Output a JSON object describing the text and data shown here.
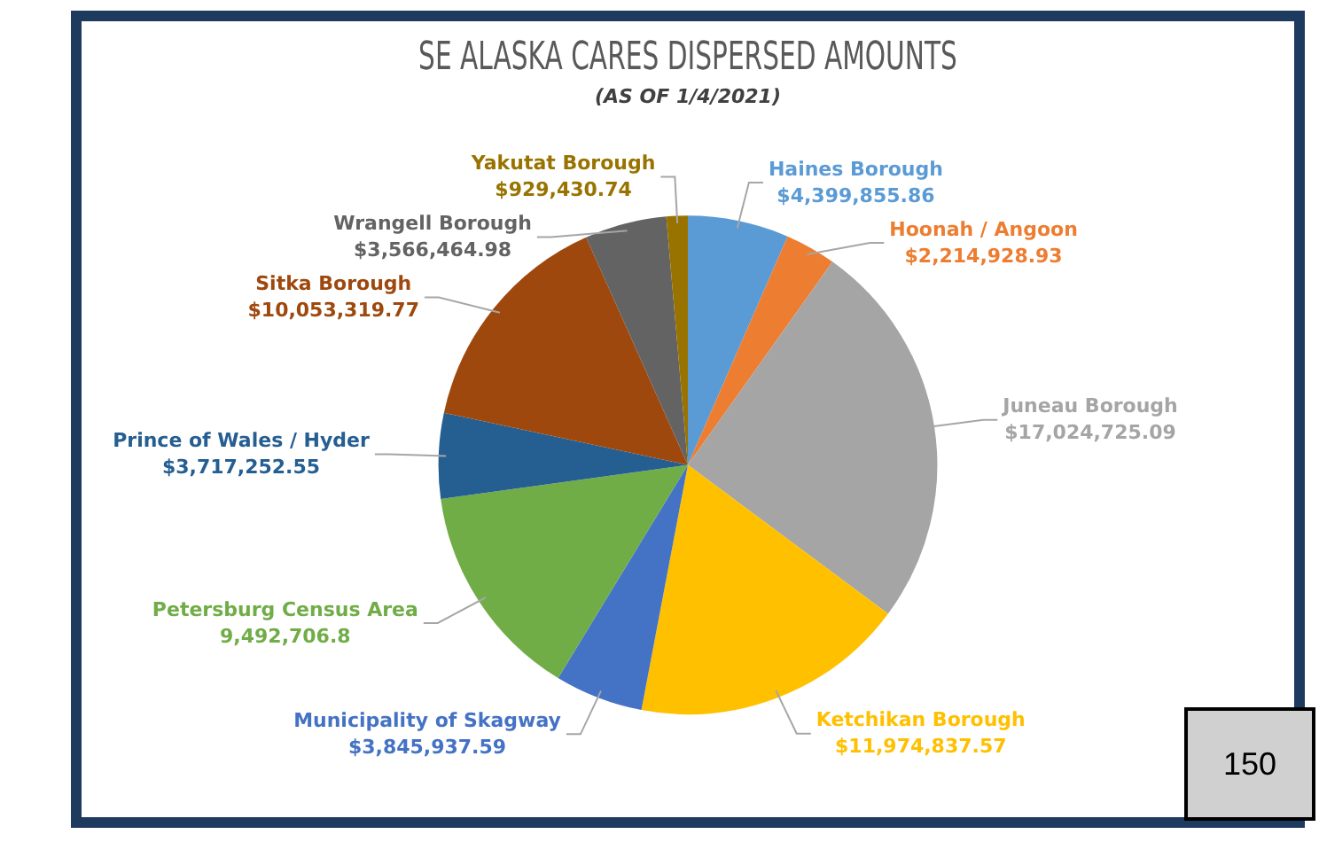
{
  "chart_data": {
    "type": "pie",
    "title": "SE ALASKA CARES DISPERSED AMOUNTS",
    "subtitle": "(AS OF 1/4/2021)",
    "categories": [
      "Haines Borough",
      "Hoonah / Angoon",
      "Juneau Borough",
      "Ketchikan Borough",
      "Municipality of Skagway",
      "Petersburg Census Area",
      "Prince of Wales / Hyder",
      "Sitka Borough",
      "Wrangell Borough",
      "Yakutat Borough"
    ],
    "values": [
      4399855.86,
      2214928.93,
      17024725.09,
      11974837.57,
      3845937.59,
      9492706.8,
      3717252.55,
      10053319.77,
      3566464.98,
      929430.74
    ],
    "value_labels": [
      "$4,399,855.86",
      "$2,214,928.93",
      "$17,024,725.09",
      "$11,974,837.57",
      "$3,845,937.59",
      "9,492,706.8",
      "$3,717,252.55",
      "$10,053,319.77",
      "$3,566,464.98",
      "$929,430.74"
    ],
    "colors": [
      "#5b9bd5",
      "#ed7d31",
      "#a5a5a5",
      "#ffc000",
      "#4472c4",
      "#70ad47",
      "#255e91",
      "#9e480e",
      "#636363",
      "#997300"
    ],
    "legend": false,
    "annotations": [
      "150"
    ]
  }
}
